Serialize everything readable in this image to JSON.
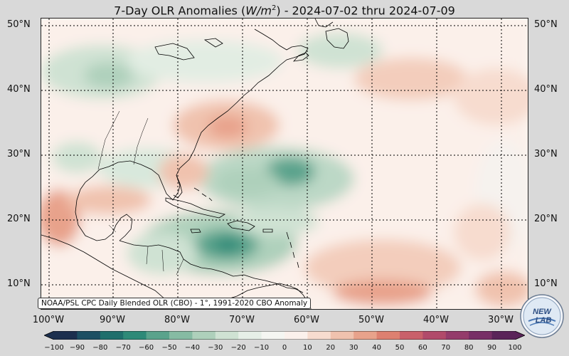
{
  "title": {
    "prefix": "7-Day OLR Anomalies (",
    "unit_base": "W/m",
    "unit_exp": "2",
    "suffix": ") - 2024-07-02 thru 2024-07-09"
  },
  "lat_labels": [
    "50°N",
    "40°N",
    "30°N",
    "20°N",
    "10°N"
  ],
  "lon_labels": [
    "100°W",
    "90°W",
    "80°W",
    "70°W",
    "60°W",
    "50°W",
    "40°W",
    "30°W"
  ],
  "source_note": "NOAA/PSL CPC Daily Blended OLR (CBO) - 1°, 1991-2020 CBO Anomaly",
  "colorbar": {
    "ticks": [
      "−100",
      "−90",
      "−80",
      "−70",
      "−60",
      "−50",
      "−40",
      "−30",
      "−20",
      "−10",
      "0",
      "10",
      "20",
      "30",
      "40",
      "50",
      "60",
      "70",
      "80",
      "90",
      "100"
    ],
    "colors": [
      "#1c2f4e",
      "#1d4f63",
      "#1f6f6c",
      "#2e8a78",
      "#5aa38c",
      "#86bba3",
      "#aed0bb",
      "#cfe2d3",
      "#e6efe7",
      "#f5f6f2",
      "#fbf1ec",
      "#f7dccf",
      "#f0c2ae",
      "#e8a28b",
      "#dd8070",
      "#c9606a",
      "#b14a6a",
      "#943c6b",
      "#772f66",
      "#5a2459"
    ]
  },
  "logo": {
    "top_text": "NEW",
    "bottom_text": "LAB"
  },
  "colors": {
    "land_line": "#000000",
    "grid": "#000000"
  }
}
